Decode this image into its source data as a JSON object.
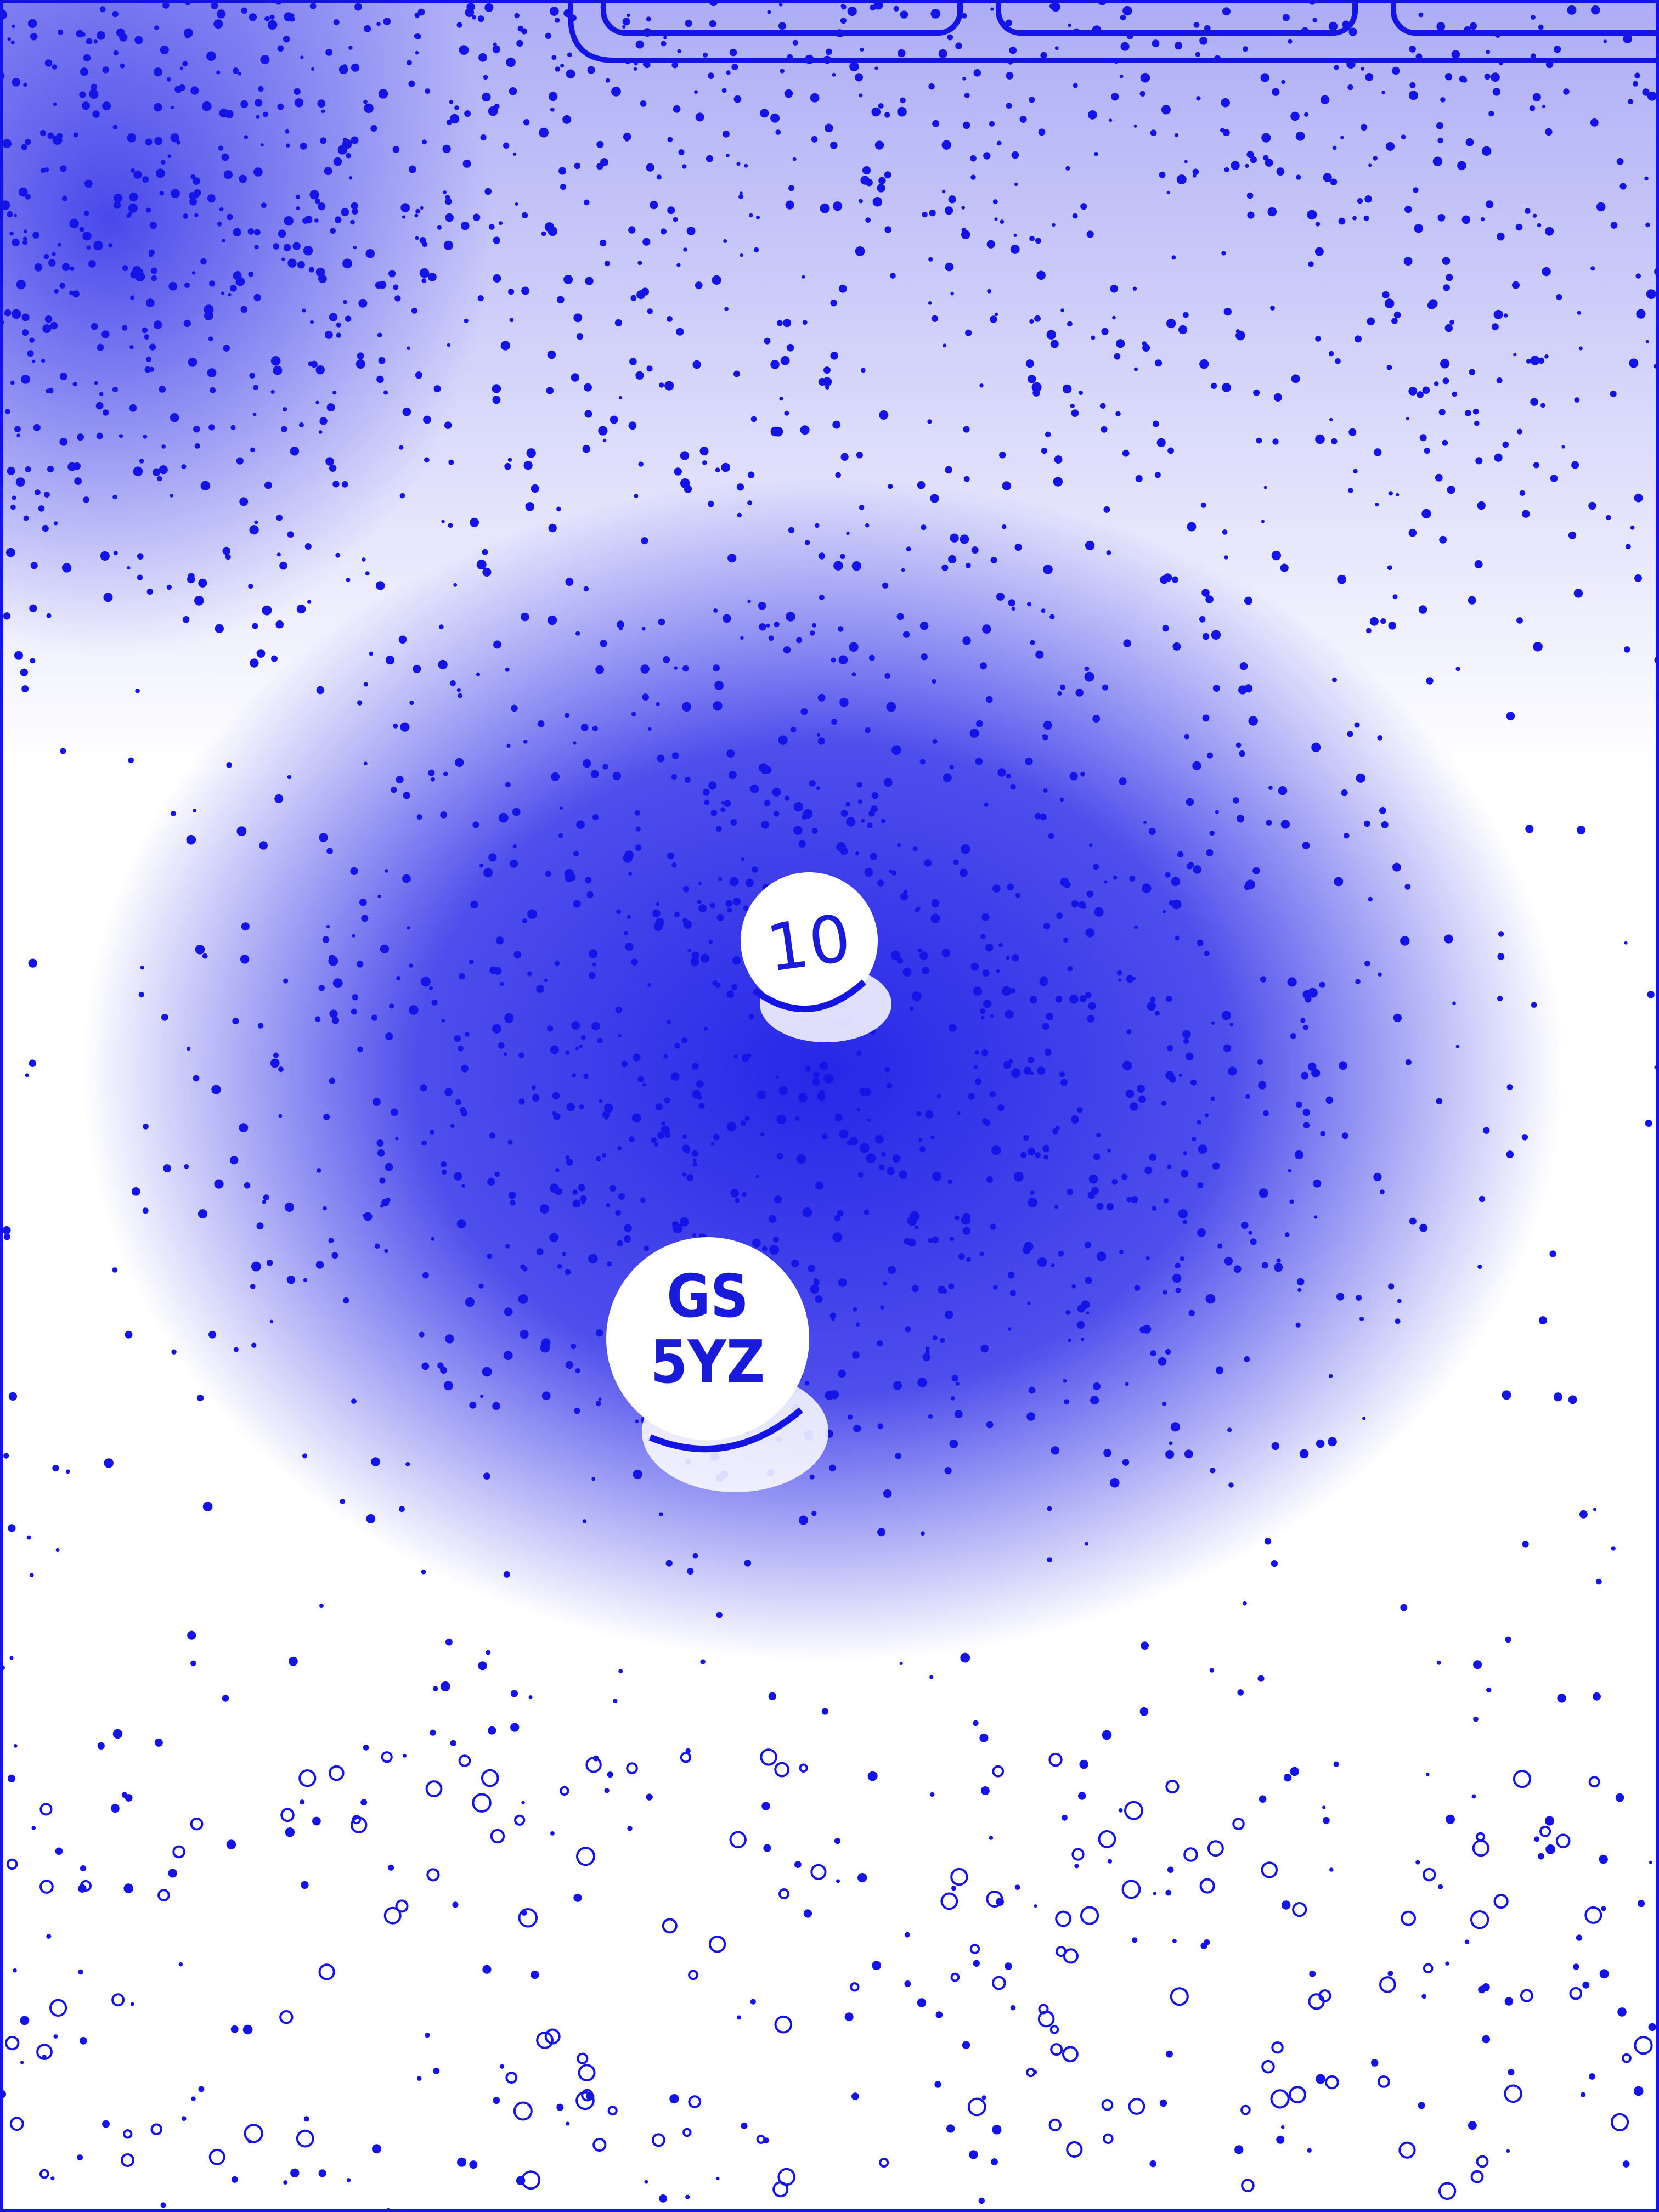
{
  "photo": {
    "tint_color": "#1414e6",
    "background_color": "#ffffff"
  },
  "pill_small": {
    "imprint": "10"
  },
  "pill_large": {
    "imprint_line1": "GS",
    "imprint_line2": "5YZ"
  }
}
